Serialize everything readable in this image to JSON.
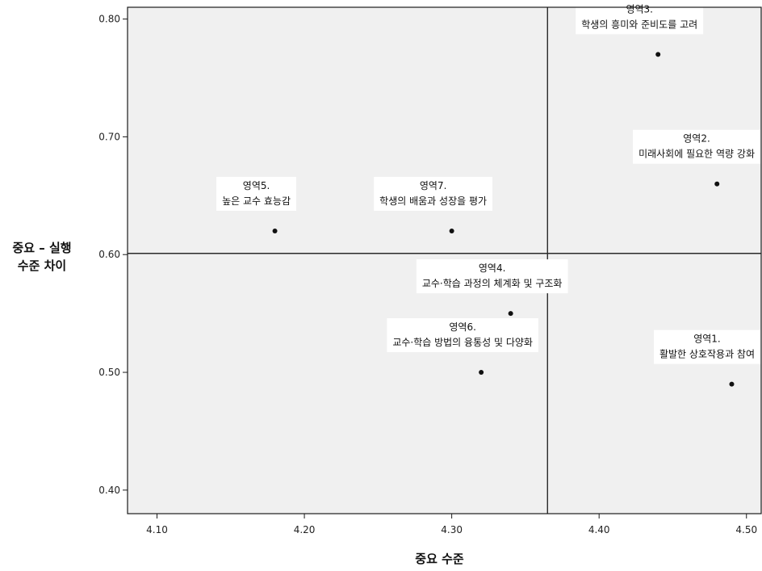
{
  "chart_data": {
    "type": "scatter",
    "title": "",
    "xlabel": "중요 수준",
    "ylabel_lines": [
      "중요 – 실행",
      "수준 차이"
    ],
    "xlim": [
      4.08,
      4.51
    ],
    "ylim": [
      0.38,
      0.81
    ],
    "x_ticks": [
      4.1,
      4.2,
      4.3,
      4.4,
      4.5
    ],
    "x_tick_labels": [
      "4.10",
      "4.20",
      "4.30",
      "4.40",
      "4.50"
    ],
    "y_ticks": [
      0.4,
      0.5,
      0.6,
      0.7,
      0.8
    ],
    "y_tick_labels": [
      "0.40",
      "0.50",
      "0.60",
      "0.70",
      "0.80"
    ],
    "reference_lines": {
      "x": 4.365,
      "y": 0.601
    },
    "grid": false,
    "background": "#f0f0f0",
    "points": [
      {
        "x": 4.44,
        "y": 0.77,
        "label": [
          "영역3.",
          "학생의 흥미와 준비도를 고려"
        ]
      },
      {
        "x": 4.48,
        "y": 0.66,
        "label": [
          "영역2.",
          "미래사회에 필요한 역량 강화"
        ]
      },
      {
        "x": 4.18,
        "y": 0.62,
        "label": [
          "영역5.",
          "높은 교수 효능감"
        ]
      },
      {
        "x": 4.3,
        "y": 0.62,
        "label": [
          "영역7.",
          "학생의 배움과 성장을 평가"
        ]
      },
      {
        "x": 4.34,
        "y": 0.55,
        "label": [
          "영역4.",
          "교수·학습 과정의 체계화 및 구조화"
        ]
      },
      {
        "x": 4.32,
        "y": 0.5,
        "label": [
          "영역6.",
          "교수·학습 방법의 융통성 및 다양화"
        ]
      },
      {
        "x": 4.49,
        "y": 0.49,
        "label": [
          "영역1.",
          "활발한 상호작용과 참여"
        ]
      }
    ]
  }
}
